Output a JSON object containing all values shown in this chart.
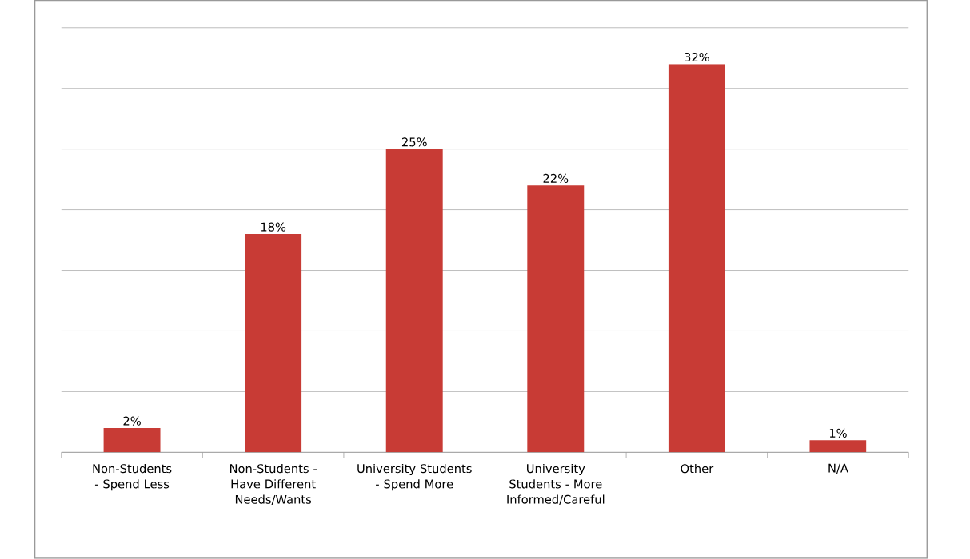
{
  "chart_data": {
    "type": "bar",
    "categories": [
      "Non-Students - Spend Less",
      "Non-Students - Have Different Needs/Wants",
      "University Students - Spend More",
      "University Students - More Informed/Careful",
      "Other",
      "N/A"
    ],
    "values": [
      2,
      18,
      25,
      22,
      32,
      1
    ],
    "value_labels": [
      "2%",
      "18%",
      "25%",
      "22%",
      "32%",
      "1%"
    ],
    "color": "#c83b35",
    "ylim": [
      0,
      35
    ],
    "yticks": [
      {
        "value": 0,
        "label": null
      },
      {
        "value": 5,
        "label": null
      },
      {
        "value": 10,
        "label": null
      },
      {
        "value": 15,
        "label": null
      },
      {
        "value": 20,
        "label": null
      },
      {
        "value": 25,
        "label": null
      },
      {
        "value": 30,
        "label": null
      },
      {
        "value": 35,
        "label": null
      }
    ],
    "grid": "y",
    "tick_labels": "x"
  }
}
